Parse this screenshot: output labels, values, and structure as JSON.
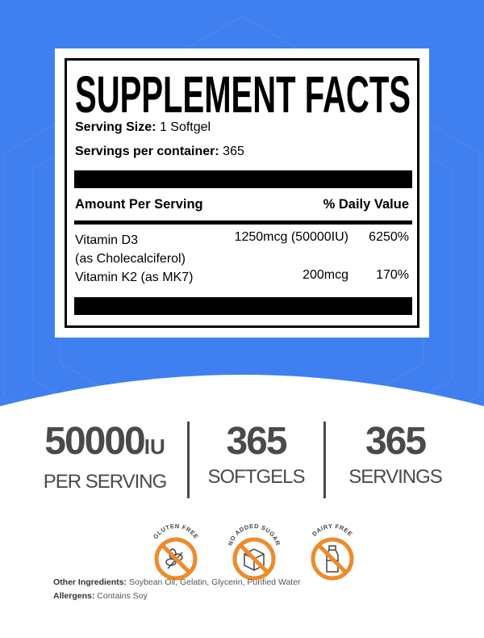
{
  "colors": {
    "background": "#3f7ff0",
    "accent": "#ef8a2b",
    "text_gray": "#4a4a4a"
  },
  "label": {
    "title": "SUPPLEMENT FACTS",
    "serving_size_label": "Serving Size:",
    "serving_size_value": "1 Softgel",
    "servings_label": "Servings per container:",
    "servings_value": "365",
    "header_amount": "Amount Per Serving",
    "header_dv": "% Daily Value",
    "rows": [
      {
        "name": "Vitamin D3",
        "sub": "(as Cholecalciferol)",
        "amount": "1250mcg (50000IU)",
        "dv": "6250%"
      },
      {
        "name": "Vitamin K2 (as MK7)",
        "amount": "200mcg",
        "dv": "170%"
      }
    ]
  },
  "stats": [
    {
      "value": "50000",
      "unit": "IU",
      "label": "PER SERVING"
    },
    {
      "value": "365",
      "label": "SOFTGELS"
    },
    {
      "value": "365",
      "label": "SERVINGS"
    }
  ],
  "badges": [
    {
      "text": "GLUTEN FREE",
      "icon": "wheat-icon"
    },
    {
      "text": "NO ADDED SUGAR",
      "icon": "sugar-cube-icon"
    },
    {
      "text": "DAIRY FREE",
      "icon": "milk-bottle-icon"
    }
  ],
  "ingredients": {
    "label": "Other Ingredients:",
    "value": "Soybean Oil, Gelatin, Glycerin, Purified Water"
  },
  "allergens": {
    "label": "Allergens:",
    "value": "Contains Soy"
  }
}
